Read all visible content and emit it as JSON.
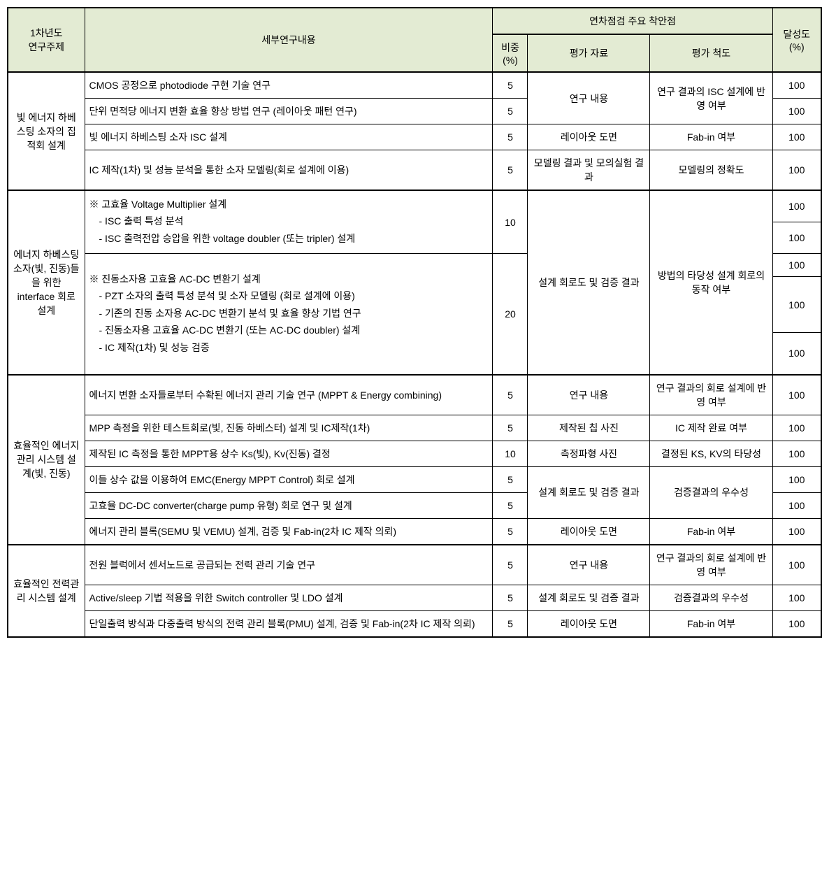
{
  "headers": {
    "topic": "1차년도\n연구주제",
    "content": "세부연구내용",
    "checkpoint_group": "연차점검 주요 착안점",
    "weight": "비중\n(%)",
    "eval_data": "평가 자료",
    "eval_scale": "평가 척도",
    "achievement": "달성도\n(%)"
  },
  "sections": [
    {
      "topic": "빛 에너지 하베스팅 소자의 집적회 설계",
      "rows": [
        {
          "content": "CMOS 공정으로 photodiode 구현 기술 연구",
          "weight": "5",
          "eval_data": "연구 내용",
          "eval_scale": "연구 결과의 ISC 설계에 반영 여부",
          "achieve": "100",
          "eval_data_span": 2,
          "eval_scale_span": 2
        },
        {
          "content": "단위 면적당 에너지 변환 효율 향상 방법 연구 (레이아웃 패턴 연구)",
          "weight": "5",
          "achieve": "100"
        },
        {
          "content": "빛 에너지 하베스팅 소자 ISC 설계",
          "weight": "5",
          "eval_data": "레이아웃 도면",
          "eval_scale": "Fab-in 여부",
          "achieve": "100"
        },
        {
          "content": "IC 제작(1차) 및 성능 분석을 통한 소자 모델링(회로 설계에 이용)",
          "weight": "5",
          "eval_data": "모델링 결과 및 모의실험 결과",
          "eval_scale": "모델링의 정확도",
          "achieve": "100"
        }
      ]
    },
    {
      "topic": "에너지 하베스팅 소자(빛, 진동)들을 위한 interface 회로 설계",
      "rows": [
        {
          "bullet_main": "※ 고효율 Voltage Multiplier 설계",
          "bullets": [
            "- ISC 출력 특성 분석",
            "- ISC 출력전압 승압을 위한 voltage doubler (또는 tripler) 설계"
          ],
          "weight": "10",
          "eval_data": "설계 회로도 및 검증 결과",
          "eval_scale": "방법의 타당성 설계 회로의 동작 여부",
          "eval_data_span": 2,
          "eval_scale_span": 2,
          "achieve_split": [
            "100",
            "100"
          ]
        },
        {
          "bullet_main": "※ 진동소자용 고효율 AC-DC 변환기 설계",
          "bullets": [
            "- PZT 소자의 출력 특성 분석 및 소자 모델링 (회로 설계에 이용)",
            "- 기존의 진동 소자용 AC-DC 변환기 분석 및 효율 향상 기법 연구",
            "- 진동소자용 고효율 AC-DC 변환기 (또는 AC-DC doubler) 설계",
            "- IC 제작(1차) 및 성능 검증"
          ],
          "weight": "20",
          "achieve_split": [
            "100",
            "100",
            "100"
          ]
        }
      ]
    },
    {
      "topic": "효율적인 에너지관리 시스템 설계(빛, 진동)",
      "rows": [
        {
          "content": "에너지 변환 소자들로부터 수확된 에너지 관리 기술 연구 (MPPT & Energy combining)",
          "weight": "5",
          "eval_data": "연구 내용",
          "eval_scale": "연구 결과의 회로 설계에 반영 여부",
          "achieve": "100"
        },
        {
          "content": "MPP 측정을 위한 테스트회로(빛, 진동 하베스터) 설계 및 IC제작(1차)",
          "weight": "5",
          "eval_data": "제작된 칩 사진",
          "eval_scale": "IC 제작 완료 여부",
          "achieve": "100"
        },
        {
          "content": "제작된 IC 측정을 통한 MPPT용 상수 Ks(빛), Kv(진동) 결정",
          "weight": "10",
          "eval_data": "측정파형 사진",
          "eval_scale": "결정된 KS, KV의 타당성",
          "achieve": "100"
        },
        {
          "content": "이들 상수 값을 이용하여 EMC(Energy MPPT Control) 회로 설계",
          "weight": "5",
          "eval_data": "설계 회로도 및 검증 결과",
          "eval_scale": "검증결과의 우수성",
          "achieve": "100",
          "eval_data_span": 2,
          "eval_scale_span": 2
        },
        {
          "content": "고효율 DC-DC converter(charge pump 유형) 회로 연구 및 설계",
          "weight": "5",
          "achieve": "100"
        },
        {
          "content": "에너지 관리 블록(SEMU 및 VEMU) 설계, 검증 및 Fab-in(2차 IC 제작 의뢰)",
          "weight": "5",
          "eval_data": "레이아웃 도면",
          "eval_scale": "Fab-in 여부",
          "achieve": "100"
        }
      ]
    },
    {
      "topic": "효율적인 전력관리 시스템 설계",
      "rows": [
        {
          "content": "전원 블럭에서 센서노드로 공급되는 전력 관리 기술 연구",
          "weight": "5",
          "eval_data": "연구 내용",
          "eval_scale": "연구 결과의 회로 설계에 반영 여부",
          "achieve": "100"
        },
        {
          "content": "Active/sleep 기법 적용을 위한 Switch controller 및 LDO 설계",
          "weight": "5",
          "eval_data": "설계 회로도 및 검증 결과",
          "eval_scale": "검증결과의 우수성",
          "achieve": "100"
        },
        {
          "content": "단일출력 방식과 다중출력 방식의 전력 관리 블록(PMU) 설계, 검증 및 Fab-in(2차 IC 제작 의뢰)",
          "weight": "5",
          "eval_data": "레이아웃 도면",
          "eval_scale": "Fab-in 여부",
          "achieve": "100"
        }
      ]
    }
  ]
}
